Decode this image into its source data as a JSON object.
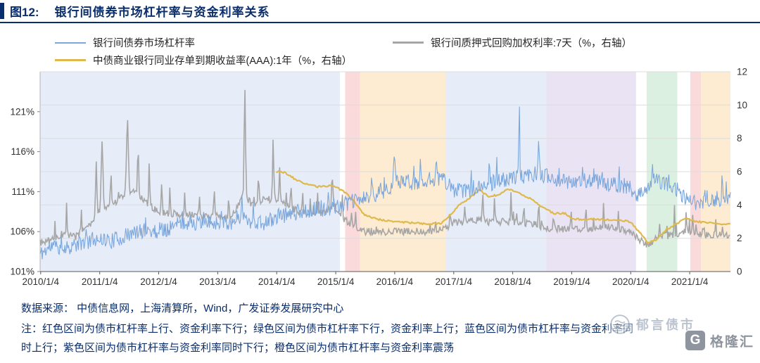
{
  "header": {
    "figure_label": "图12:",
    "title": "银行间债券市场杠杆率与资金利率关系"
  },
  "palette": {
    "accent_navy": "#0a2e6b",
    "leverage_blue": "#7ba7dc",
    "repo_gray": "#a6a6a6",
    "ncd_gold": "#dfb94e",
    "region_blue": "#e6ecf8",
    "region_red": "#fadada",
    "region_orange": "#fdecd2",
    "region_purple": "#eae3f3",
    "region_green": "#dcf0e2"
  },
  "legend": [
    {
      "label": "银行间债券市场杠杆率",
      "color": "#7ba7dc",
      "axis": "left"
    },
    {
      "label": "银行间质押式回购加权利率:7天（%，右轴）",
      "color": "#a6a6a6",
      "axis": "right"
    },
    {
      "label": "中债商业银行同业存单到期收益率(AAA):1年（%，右轴）",
      "color": "#dfb94e",
      "axis": "right"
    }
  ],
  "chart_data": {
    "type": "line",
    "title": "银行间债券市场杠杆率与资金利率关系",
    "legend_position": "top",
    "grid": true,
    "seed": 11,
    "x_range": [
      2010.0,
      2021.7
    ],
    "x_ticks": [
      "2010/1/4",
      "2011/1/4",
      "2012/1/4",
      "2013/1/4",
      "2014/1/4",
      "2015/1/4",
      "2016/1/4",
      "2017/1/4",
      "2018/1/4",
      "2019/1/4",
      "2020/1/4",
      "2021/1/4"
    ],
    "x_tick_values": [
      2010.01,
      2011.01,
      2012.01,
      2013.01,
      2014.01,
      2015.01,
      2016.01,
      2017.01,
      2018.01,
      2019.01,
      2020.01,
      2021.01
    ],
    "left_axis": {
      "ticks": [
        "101%",
        "106%",
        "111%",
        "116%",
        "121%"
      ],
      "values": [
        101,
        106,
        111,
        116,
        121
      ],
      "range": [
        101,
        126
      ]
    },
    "right_axis": {
      "ticks": [
        0,
        2,
        4,
        6,
        8,
        10,
        12
      ],
      "range": [
        0,
        12
      ]
    },
    "regions": [
      {
        "name": "blue-1",
        "from": 2010.0,
        "to": 2015.08,
        "color": "#e6ecf8",
        "meaning": "债市杠杆率与资金利率同时上行"
      },
      {
        "name": "red-1",
        "from": 2015.17,
        "to": 2015.42,
        "color": "#fadada",
        "meaning": "债市杠杆率上行、资金利率下行"
      },
      {
        "name": "orange-1",
        "from": 2015.42,
        "to": 2016.87,
        "color": "#fdecd2",
        "meaning": "债市杠杆率与资金利率震荡"
      },
      {
        "name": "blue-2",
        "from": 2016.87,
        "to": 2018.58,
        "color": "#e6ecf8",
        "meaning": "债市杠杆率与资金利率同时上行"
      },
      {
        "name": "purple-1",
        "from": 2018.58,
        "to": 2020.1,
        "color": "#eae3f3",
        "meaning": "债市杠杆率与资金利率同时下行"
      },
      {
        "name": "green-1",
        "from": 2020.28,
        "to": 2020.8,
        "color": "#dcf0e2",
        "meaning": "债市杠杆率下行，资金利率上行"
      },
      {
        "name": "red-2",
        "from": 2021.02,
        "to": 2021.2,
        "color": "#fadada",
        "meaning": "债市杠杆率上行、资金利率下行"
      },
      {
        "name": "orange-2",
        "from": 2021.2,
        "to": 2021.7,
        "color": "#fdecd2",
        "meaning": "债市杠杆率与资金利率震荡"
      }
    ],
    "series": [
      {
        "name": "银行间债券市场杠杆率",
        "name_en": "leverage-ratio",
        "axis": "left",
        "unit": "%",
        "color": "#7ba7dc",
        "width": 1.1,
        "step": 0.012,
        "noise": 1.0,
        "spike_prob": 0.05,
        "spike_amp": 2.4,
        "anchors": [
          [
            2010.0,
            103.2
          ],
          [
            2010.2,
            104.2
          ],
          [
            2010.4,
            104.0
          ],
          [
            2010.6,
            104.3
          ],
          [
            2010.8,
            104.8
          ],
          [
            2011.0,
            105.2
          ],
          [
            2011.2,
            104.8
          ],
          [
            2011.4,
            105.3
          ],
          [
            2011.6,
            105.8
          ],
          [
            2011.8,
            106.2
          ],
          [
            2012.0,
            106.0
          ],
          [
            2012.2,
            106.5
          ],
          [
            2012.4,
            107.0
          ],
          [
            2012.6,
            107.2
          ],
          [
            2012.8,
            106.8
          ],
          [
            2013.0,
            107.2
          ],
          [
            2013.2,
            107.0
          ],
          [
            2013.4,
            108.0
          ],
          [
            2013.6,
            107.2
          ],
          [
            2013.8,
            107.0
          ],
          [
            2014.0,
            107.8
          ],
          [
            2014.2,
            108.2
          ],
          [
            2014.4,
            108.5
          ],
          [
            2014.6,
            108.8
          ],
          [
            2014.8,
            108.8
          ],
          [
            2015.0,
            109.2
          ],
          [
            2015.2,
            109.5
          ],
          [
            2015.4,
            110.0
          ],
          [
            2015.6,
            110.3
          ],
          [
            2015.8,
            111.0
          ],
          [
            2016.0,
            112.0
          ],
          [
            2016.2,
            112.3
          ],
          [
            2016.4,
            112.0
          ],
          [
            2016.6,
            112.5
          ],
          [
            2016.8,
            112.8
          ],
          [
            2017.0,
            111.2
          ],
          [
            2017.2,
            111.0
          ],
          [
            2017.4,
            111.5
          ],
          [
            2017.6,
            112.0
          ],
          [
            2017.8,
            112.3
          ],
          [
            2018.0,
            112.8
          ],
          [
            2018.2,
            112.8
          ],
          [
            2018.4,
            113.2
          ],
          [
            2018.6,
            113.0
          ],
          [
            2018.8,
            112.5
          ],
          [
            2019.0,
            112.2
          ],
          [
            2019.2,
            112.5
          ],
          [
            2019.4,
            112.3
          ],
          [
            2019.6,
            112.0
          ],
          [
            2019.8,
            111.8
          ],
          [
            2020.0,
            111.5
          ],
          [
            2020.1,
            110.2
          ],
          [
            2020.2,
            111.0
          ],
          [
            2020.4,
            112.2
          ],
          [
            2020.6,
            112.0
          ],
          [
            2020.8,
            111.2
          ],
          [
            2021.0,
            109.8
          ],
          [
            2021.2,
            109.5
          ],
          [
            2021.4,
            110.0
          ],
          [
            2021.7,
            110.3
          ]
        ],
        "spikes": [
          [
            2013.42,
            2.0,
            0.014
          ],
          [
            2015.62,
            2.2,
            0.014
          ],
          [
            2016.0,
            3.3,
            0.018
          ],
          [
            2016.45,
            2.6,
            0.012
          ],
          [
            2016.72,
            3.0,
            0.014
          ],
          [
            2018.12,
            8.3,
            0.012
          ],
          [
            2018.45,
            3.4,
            0.014
          ],
          [
            2020.38,
            2.8,
            0.014
          ],
          [
            2021.56,
            2.4,
            0.012
          ]
        ]
      },
      {
        "name": "银行间质押式回购加权利率:7天",
        "name_en": "repo-rate-7d",
        "axis": "right",
        "unit": "%",
        "color": "#a6a6a6",
        "width": 1.6,
        "step": 0.014,
        "noise": 0.22,
        "spike_prob": 0.04,
        "spike_amp": 0.9,
        "anchors": [
          [
            2010.0,
            1.7
          ],
          [
            2010.2,
            1.9
          ],
          [
            2010.4,
            2.3
          ],
          [
            2010.6,
            2.1
          ],
          [
            2010.8,
            2.6
          ],
          [
            2011.0,
            3.6
          ],
          [
            2011.2,
            3.9
          ],
          [
            2011.4,
            4.6
          ],
          [
            2011.6,
            4.9
          ],
          [
            2011.8,
            4.1
          ],
          [
            2012.0,
            3.6
          ],
          [
            2012.2,
            3.5
          ],
          [
            2012.4,
            3.4
          ],
          [
            2012.6,
            3.4
          ],
          [
            2012.8,
            3.3
          ],
          [
            2013.0,
            3.3
          ],
          [
            2013.2,
            3.1
          ],
          [
            2013.45,
            4.6
          ],
          [
            2013.6,
            4.0
          ],
          [
            2013.8,
            4.3
          ],
          [
            2014.0,
            4.4
          ],
          [
            2014.2,
            3.9
          ],
          [
            2014.4,
            3.6
          ],
          [
            2014.6,
            3.5
          ],
          [
            2014.8,
            3.5
          ],
          [
            2015.0,
            3.9
          ],
          [
            2015.15,
            3.2
          ],
          [
            2015.3,
            2.7
          ],
          [
            2015.5,
            2.4
          ],
          [
            2015.8,
            2.4
          ],
          [
            2016.0,
            2.4
          ],
          [
            2016.3,
            2.4
          ],
          [
            2016.6,
            2.4
          ],
          [
            2016.9,
            2.6
          ],
          [
            2017.0,
            2.9
          ],
          [
            2017.2,
            3.0
          ],
          [
            2017.4,
            3.1
          ],
          [
            2017.6,
            3.0
          ],
          [
            2017.8,
            3.0
          ],
          [
            2018.0,
            3.0
          ],
          [
            2018.2,
            2.9
          ],
          [
            2018.4,
            2.8
          ],
          [
            2018.6,
            2.6
          ],
          [
            2018.8,
            2.6
          ],
          [
            2019.0,
            2.5
          ],
          [
            2019.2,
            2.6
          ],
          [
            2019.4,
            2.6
          ],
          [
            2019.6,
            2.7
          ],
          [
            2019.8,
            2.6
          ],
          [
            2020.0,
            2.4
          ],
          [
            2020.15,
            1.9
          ],
          [
            2020.3,
            1.6
          ],
          [
            2020.5,
            2.1
          ],
          [
            2020.7,
            2.2
          ],
          [
            2020.9,
            2.4
          ],
          [
            2021.0,
            2.3
          ],
          [
            2021.2,
            2.2
          ],
          [
            2021.4,
            2.2
          ],
          [
            2021.7,
            2.2
          ]
        ],
        "spikes": [
          [
            2010.45,
            1.5,
            0.012
          ],
          [
            2010.7,
            1.2,
            0.01
          ],
          [
            2010.95,
            3.2,
            0.015
          ],
          [
            2011.05,
            4.2,
            0.02
          ],
          [
            2011.2,
            2.2,
            0.012
          ],
          [
            2011.48,
            4.3,
            0.022
          ],
          [
            2011.66,
            2.8,
            0.014
          ],
          [
            2011.85,
            2.5,
            0.012
          ],
          [
            2012.06,
            1.8,
            0.012
          ],
          [
            2012.2,
            1.5,
            0.01
          ],
          [
            2012.45,
            1.2,
            0.01
          ],
          [
            2012.7,
            1.3,
            0.01
          ],
          [
            2012.95,
            1.8,
            0.012
          ],
          [
            2013.2,
            1.2,
            0.01
          ],
          [
            2013.47,
            6.4,
            0.016
          ],
          [
            2013.7,
            1.5,
            0.01
          ],
          [
            2013.95,
            3.6,
            0.014
          ],
          [
            2014.06,
            2.0,
            0.012
          ],
          [
            2014.25,
            1.5,
            0.01
          ],
          [
            2014.45,
            1.2,
            0.01
          ],
          [
            2014.7,
            1.3,
            0.01
          ],
          [
            2014.95,
            2.2,
            0.012
          ],
          [
            2015.12,
            1.4,
            0.012
          ],
          [
            2015.35,
            0.8,
            0.01
          ],
          [
            2016.95,
            1.0,
            0.01
          ],
          [
            2017.2,
            1.3,
            0.01
          ],
          [
            2017.5,
            1.7,
            0.012
          ],
          [
            2017.7,
            1.5,
            0.01
          ],
          [
            2017.98,
            1.6,
            0.01
          ],
          [
            2018.2,
            1.2,
            0.01
          ],
          [
            2018.45,
            1.4,
            0.01
          ],
          [
            2018.7,
            1.0,
            0.01
          ],
          [
            2019.0,
            1.0,
            0.01
          ],
          [
            2019.25,
            1.2,
            0.01
          ],
          [
            2019.55,
            1.6,
            0.01
          ],
          [
            2019.8,
            1.0,
            0.01
          ],
          [
            2020.5,
            0.6,
            0.01
          ],
          [
            2020.75,
            0.8,
            0.01
          ],
          [
            2020.95,
            1.3,
            0.01
          ],
          [
            2021.06,
            1.0,
            0.01
          ],
          [
            2021.25,
            0.7,
            0.01
          ],
          [
            2021.45,
            0.8,
            0.01
          ]
        ]
      },
      {
        "name": "中债商业银行同业存单到期收益率(AAA):1年",
        "name_en": "ncd-yield-1y",
        "axis": "right",
        "unit": "%",
        "color": "#dfb94e",
        "width": 2.2,
        "step": 0.02,
        "noise": 0.05,
        "spike_prob": 0,
        "spike_amp": 0,
        "anchors": [
          [
            2014.0,
            6.0
          ],
          [
            2014.15,
            5.95
          ],
          [
            2014.3,
            5.6
          ],
          [
            2014.5,
            5.25
          ],
          [
            2014.7,
            5.1
          ],
          [
            2014.9,
            5.15
          ],
          [
            2015.0,
            5.1
          ],
          [
            2015.15,
            4.8
          ],
          [
            2015.3,
            4.3
          ],
          [
            2015.5,
            3.4
          ],
          [
            2015.7,
            3.15
          ],
          [
            2015.9,
            3.05
          ],
          [
            2016.0,
            3.0
          ],
          [
            2016.2,
            2.95
          ],
          [
            2016.4,
            2.9
          ],
          [
            2016.6,
            2.85
          ],
          [
            2016.8,
            2.9
          ],
          [
            2016.95,
            3.4
          ],
          [
            2017.1,
            4.0
          ],
          [
            2017.25,
            4.35
          ],
          [
            2017.45,
            4.9
          ],
          [
            2017.6,
            4.5
          ],
          [
            2017.75,
            4.6
          ],
          [
            2017.95,
            4.95
          ],
          [
            2018.1,
            4.75
          ],
          [
            2018.3,
            4.4
          ],
          [
            2018.5,
            3.9
          ],
          [
            2018.7,
            3.5
          ],
          [
            2018.9,
            3.5
          ],
          [
            2019.0,
            3.2
          ],
          [
            2019.2,
            3.1
          ],
          [
            2019.4,
            3.15
          ],
          [
            2019.6,
            3.1
          ],
          [
            2019.8,
            3.1
          ],
          [
            2020.0,
            3.0
          ],
          [
            2020.15,
            2.4
          ],
          [
            2020.3,
            1.75
          ],
          [
            2020.45,
            1.9
          ],
          [
            2020.6,
            2.5
          ],
          [
            2020.8,
            2.9
          ],
          [
            2020.95,
            3.25
          ],
          [
            2021.1,
            3.0
          ],
          [
            2021.3,
            2.95
          ],
          [
            2021.5,
            2.85
          ],
          [
            2021.7,
            2.85
          ]
        ],
        "spikes": []
      }
    ]
  },
  "footer": {
    "source": "数据来源： 中债信息网，上海清算所，Wind，广发证券发展研究中心",
    "note_line1": "注：红色区间为债市杠杆率上行、资金利率下行；绿色区间为债市杠杆率下行，资金利率上行；蓝色区间为债市杠杆率与资金利率同",
    "note_line2": "时上行；紫色区间为债市杠杆率与资金利率同时下行；橙色区间为债市杠杆率与资金利率震荡"
  },
  "watermark": {
    "text": "郁言债市"
  },
  "logo": {
    "letter": "G",
    "text": "格隆汇"
  }
}
